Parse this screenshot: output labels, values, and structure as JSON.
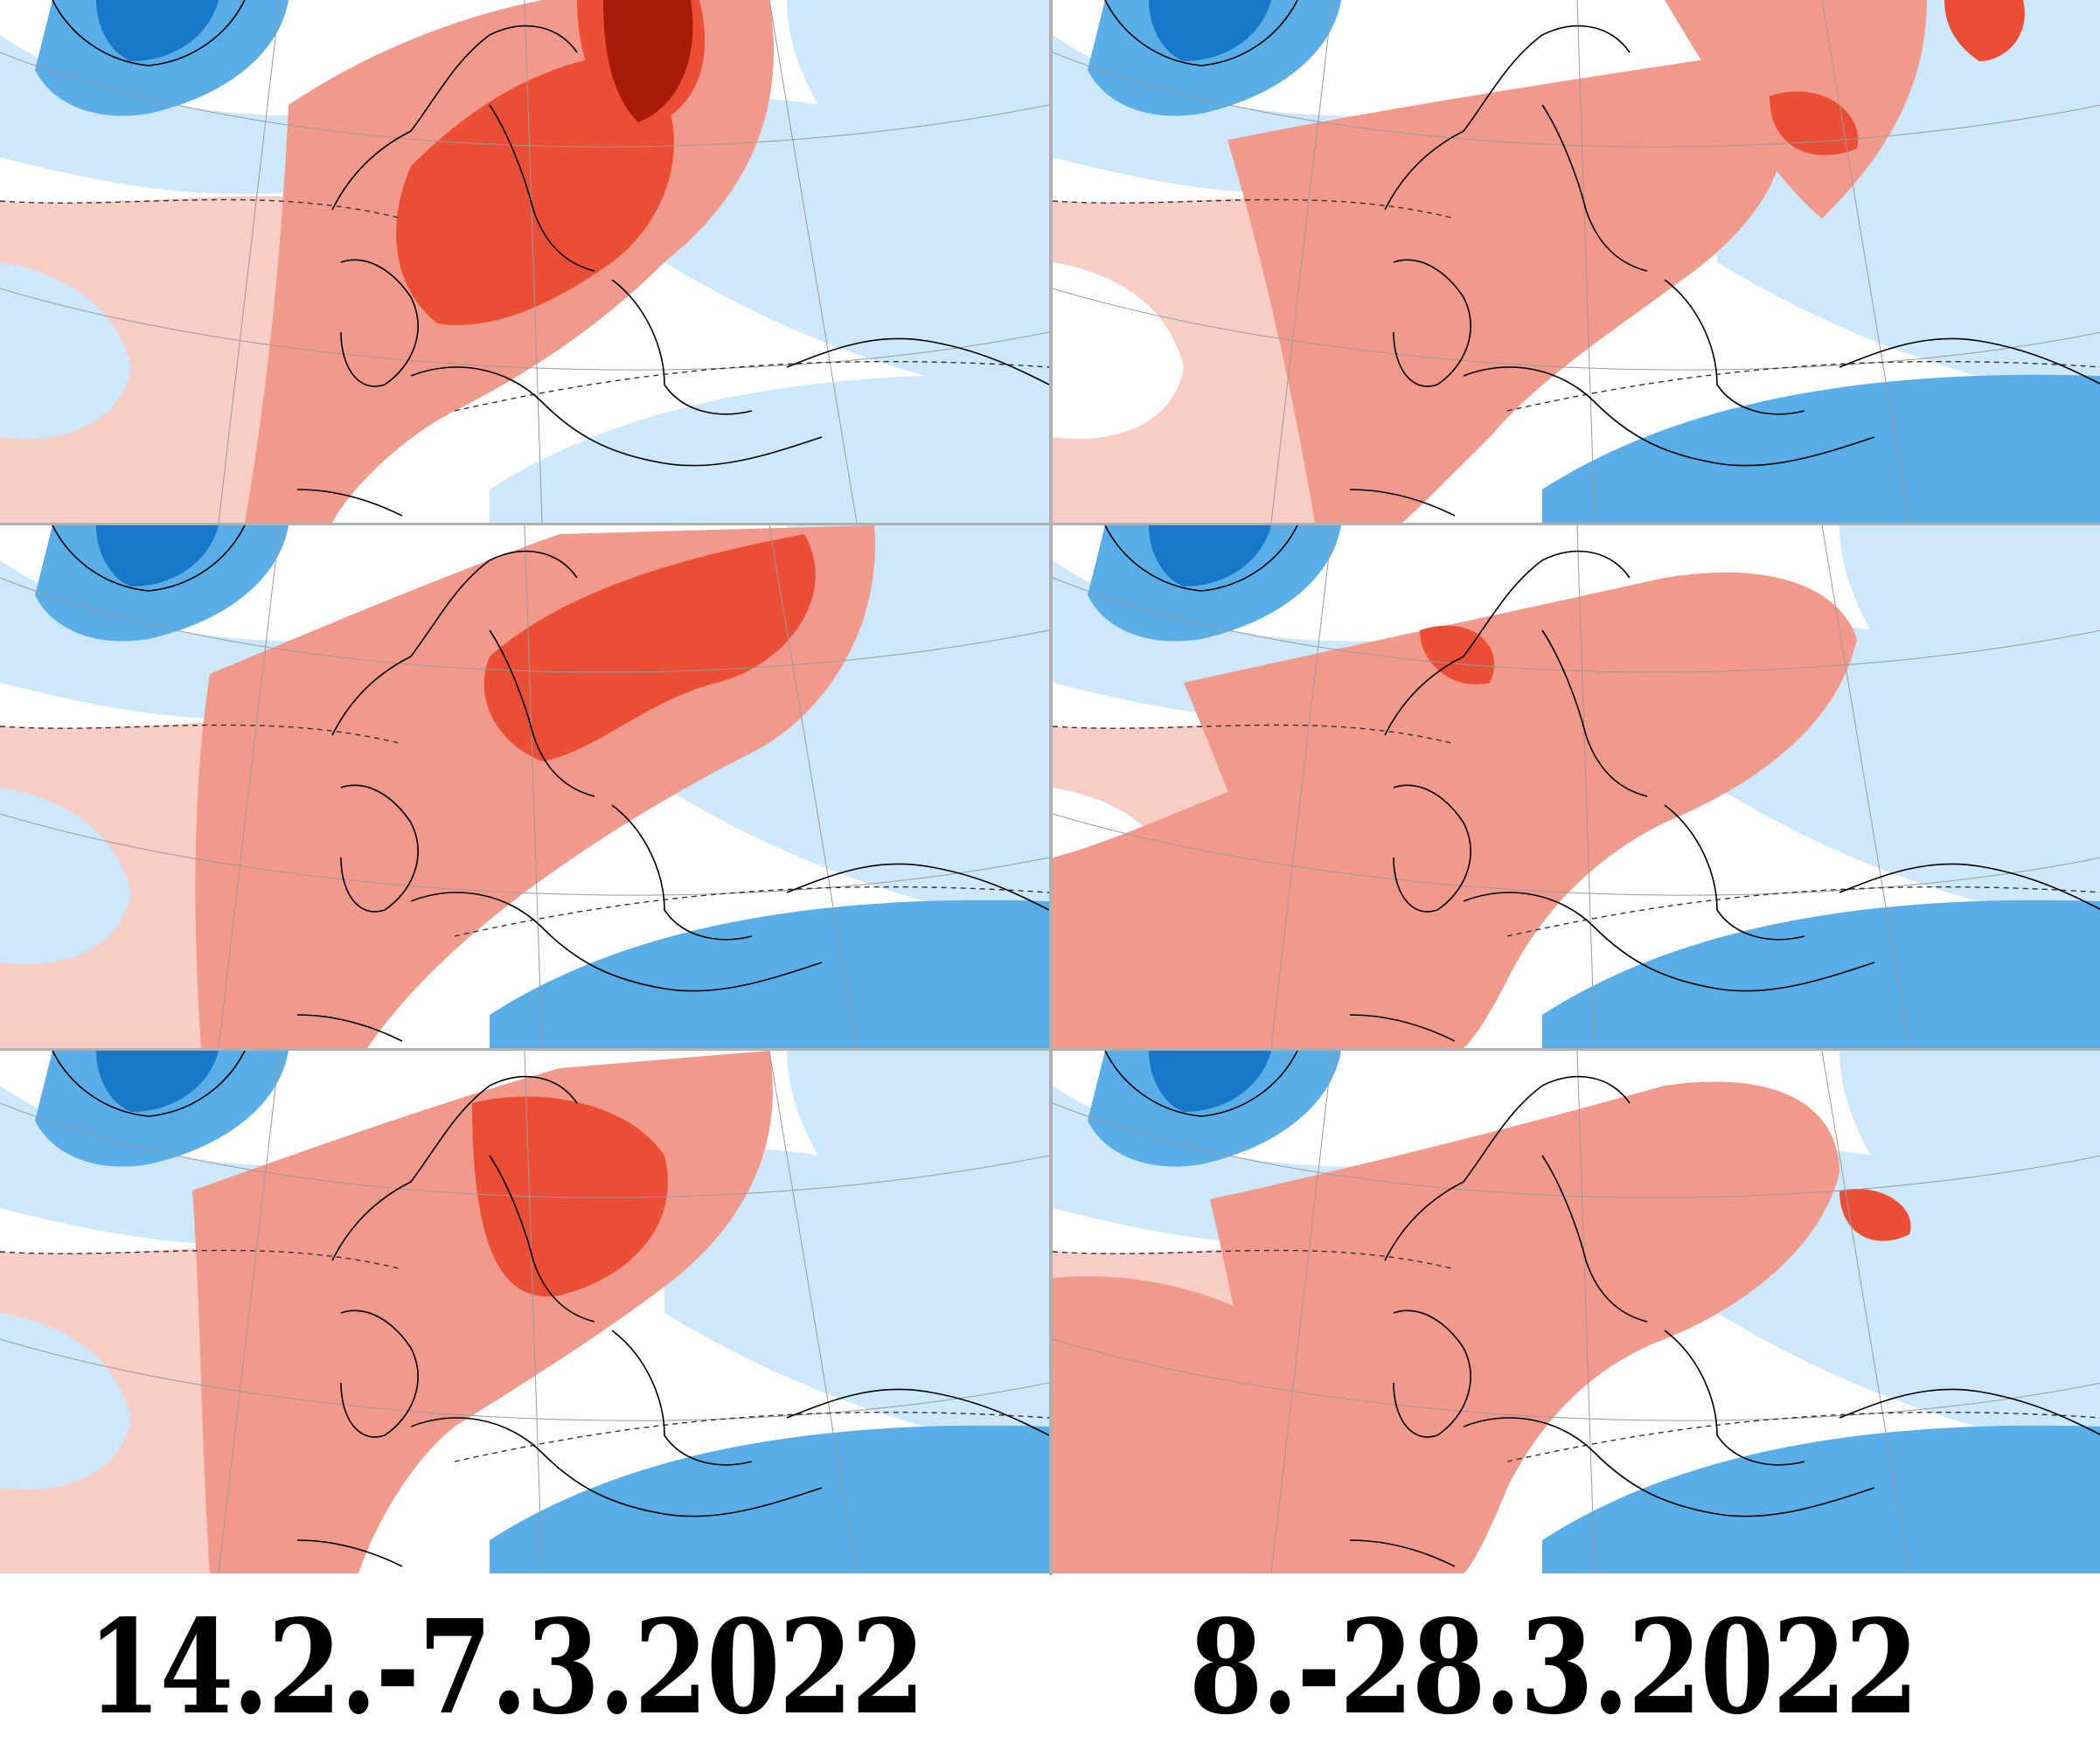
{
  "captions": {
    "left": "14.2.-7.3.2022",
    "right": "8.-28.3.2022"
  },
  "colors": {
    "strong_cold": "#1778c8",
    "cold": "#5aaee8",
    "light_cold": "#cde8fb",
    "light_warm": "#f8cdc6",
    "warm": "#f19a8c",
    "hot": "#ea4f35",
    "very_hot": "#a81b0b",
    "coast": "#000000",
    "graticule": "#9a9a9a"
  },
  "panels": [
    {
      "id": "left-row1",
      "column": "left",
      "row": 1,
      "warm_intensity": "very-strong"
    },
    {
      "id": "right-row1",
      "column": "right",
      "row": 1,
      "warm_intensity": "moderate"
    },
    {
      "id": "left-row2",
      "column": "left",
      "row": 2,
      "warm_intensity": "strong"
    },
    {
      "id": "right-row2",
      "column": "right",
      "row": 2,
      "warm_intensity": "moderate"
    },
    {
      "id": "left-row3",
      "column": "left",
      "row": 3,
      "warm_intensity": "strong"
    },
    {
      "id": "right-row3",
      "column": "right",
      "row": 3,
      "warm_intensity": "moderate"
    }
  ]
}
